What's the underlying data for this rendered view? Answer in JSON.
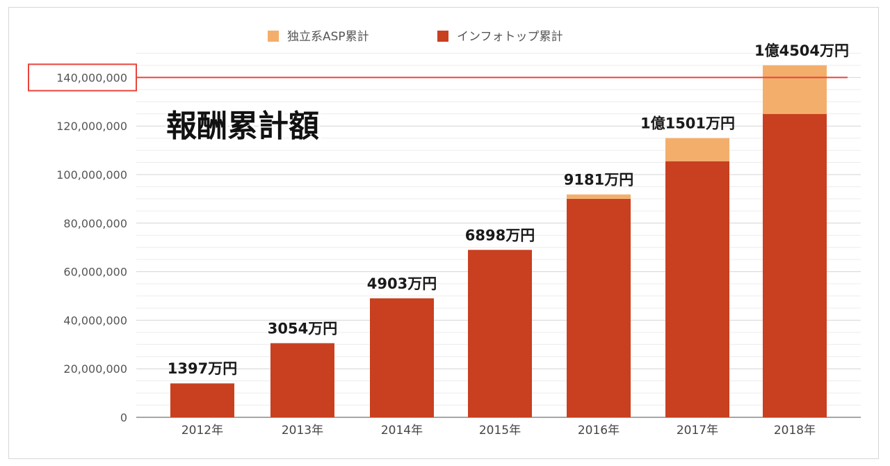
{
  "chart_data": {
    "type": "bar",
    "stacked": true,
    "title": "報酬累計額",
    "categories": [
      "2012年",
      "2013年",
      "2014年",
      "2015年",
      "2016年",
      "2017年",
      "2018年"
    ],
    "series": [
      {
        "name": "インフォトップ累計",
        "color": "#c8401f",
        "values": [
          13970000,
          30540000,
          49030000,
          68980000,
          90000000,
          105500000,
          125000000
        ]
      },
      {
        "name": "独立系ASP累計",
        "color": "#f4ae6b",
        "values": [
          0,
          0,
          0,
          0,
          1810000,
          9510000,
          20040000
        ]
      }
    ],
    "data_labels": [
      "1397万円",
      "3054万円",
      "4903万円",
      "6898万円",
      "9181万円",
      "1億1501万円",
      "1億4504万円"
    ],
    "y_ticks": [
      "0",
      "20,000,000",
      "40,000,000",
      "60,000,000",
      "80,000,000",
      "100,000,000",
      "120,000,000",
      "140,000,000"
    ],
    "ylim": [
      0,
      150000000
    ],
    "highlighted_tick": "140,000,000",
    "reference_line": 140000000,
    "reference_color": "#e8453c",
    "grid": true,
    "legend_position": "top"
  }
}
